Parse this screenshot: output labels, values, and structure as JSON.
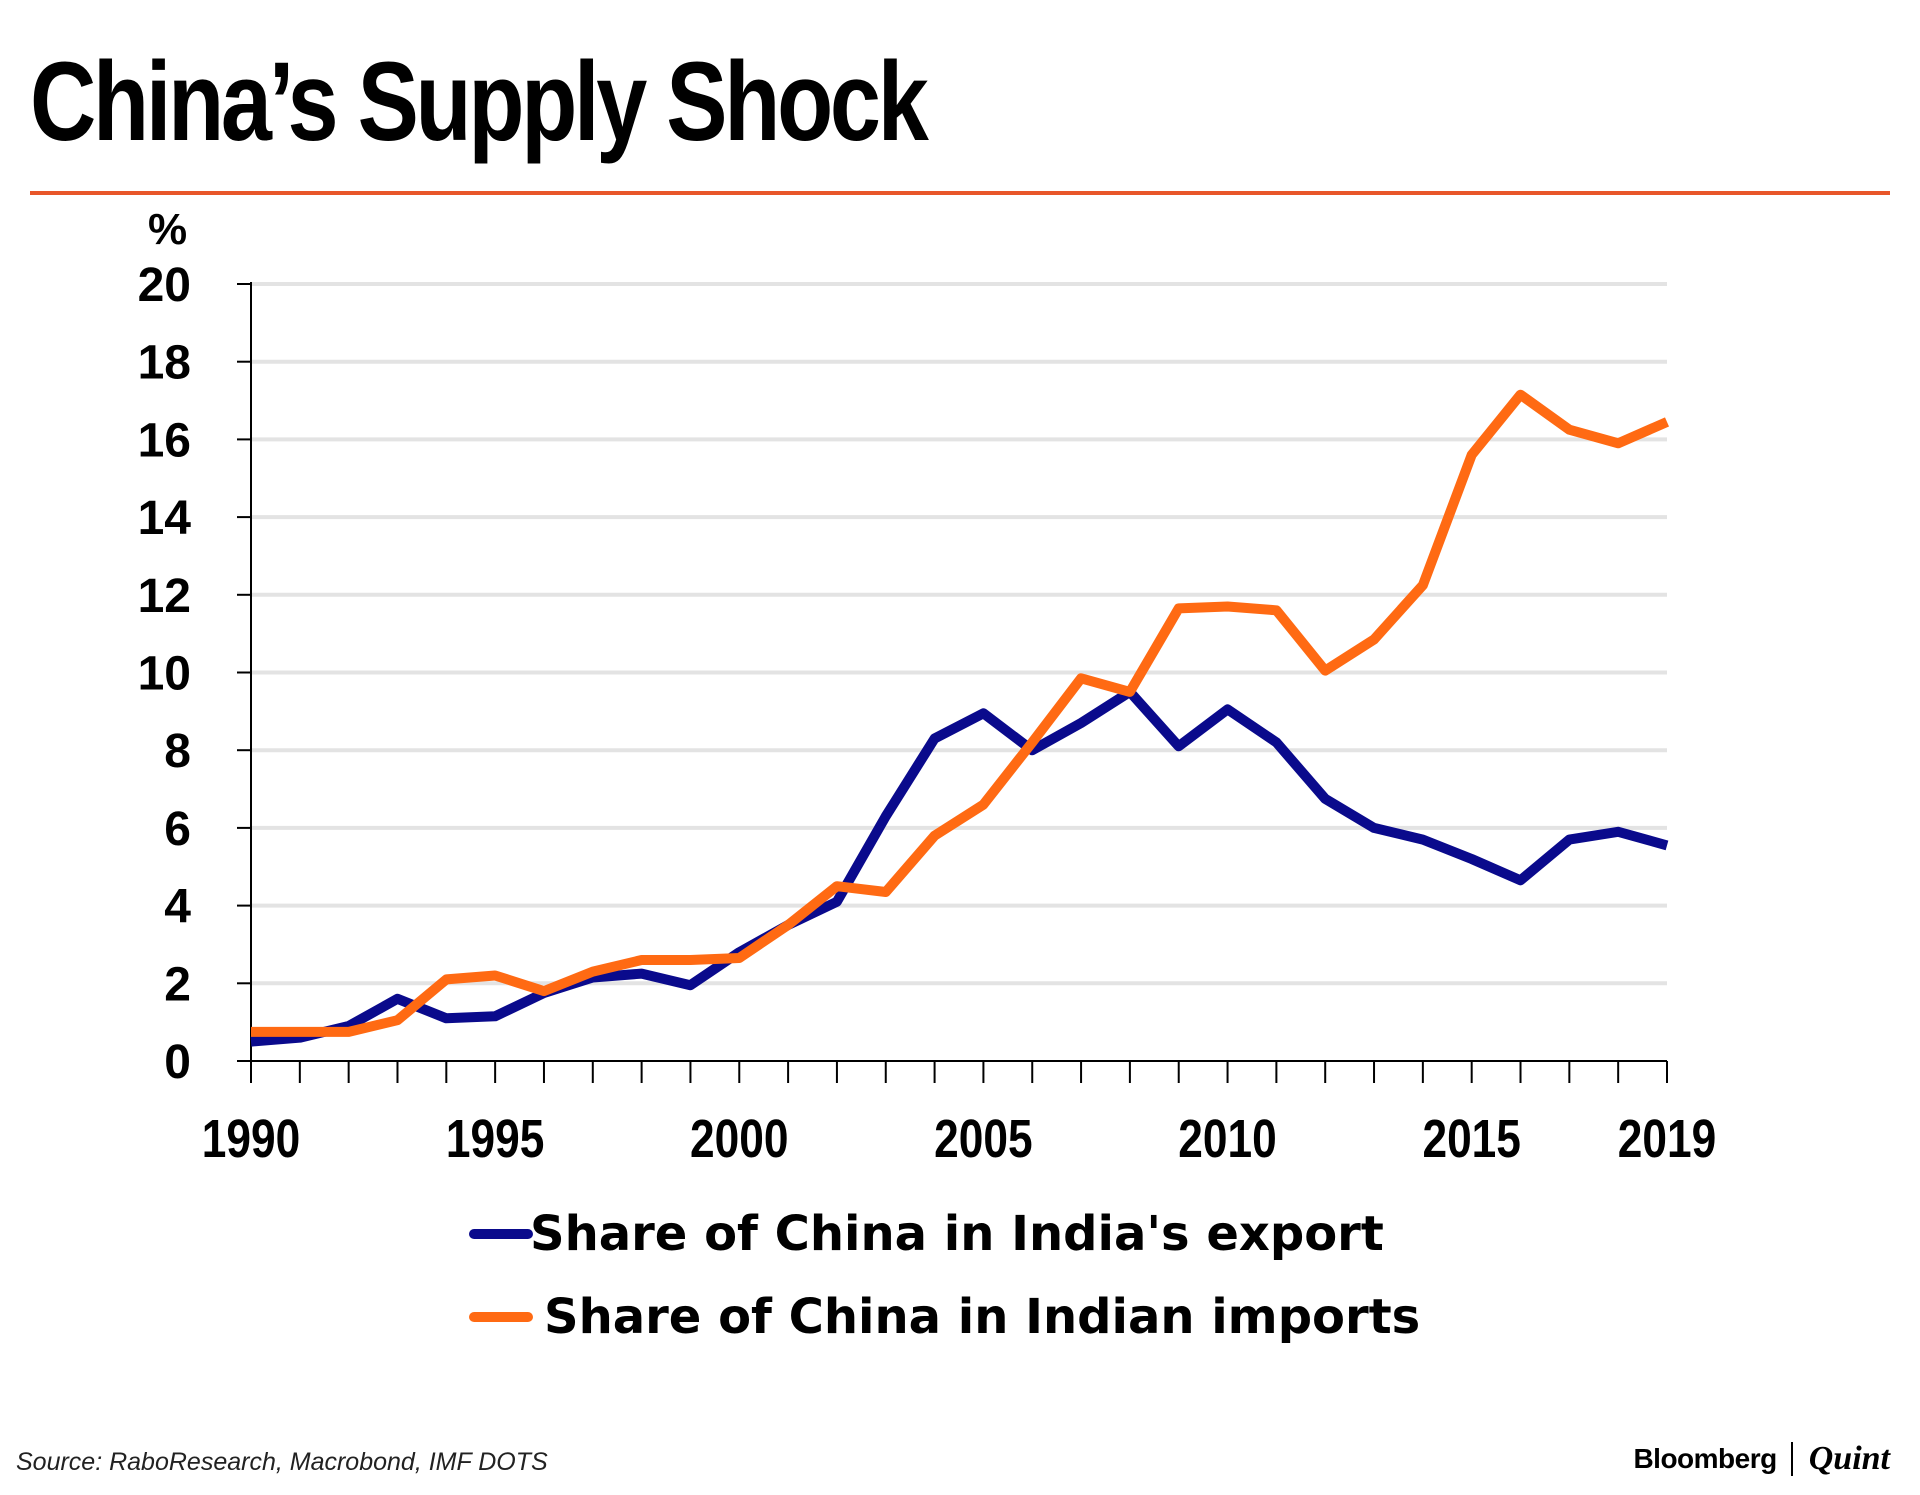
{
  "title": "China’s Supply Shock",
  "source": "Source: RaboResearch, Macrobond, IMF DOTS",
  "brand": {
    "left": "Bloomberg",
    "right": "Quint"
  },
  "colors": {
    "accent_rule": "#e8562a",
    "grid": "#e3e3e3",
    "axis": "#000000",
    "export": "#0a0a8c",
    "imports": "#ff6a13"
  },
  "chart_data": {
    "type": "line",
    "title": "China’s Supply Shock",
    "ylabel": "%",
    "xlabel": "",
    "ylim": [
      0,
      20
    ],
    "xlim": [
      1990,
      2019
    ],
    "yticks": [
      "0",
      "2",
      "4",
      "6",
      "8",
      "10",
      "12",
      "14",
      "16",
      "18",
      "20"
    ],
    "xtick_labels": [
      "1990",
      "1995",
      "2000",
      "2005",
      "2010",
      "2015",
      "2019"
    ],
    "grid": true,
    "legend_position": "bottom-center",
    "x": [
      1990,
      1991,
      1992,
      1993,
      1994,
      1995,
      1996,
      1997,
      1998,
      1999,
      2000,
      2001,
      2002,
      2003,
      2004,
      2005,
      2006,
      2007,
      2008,
      2009,
      2010,
      2011,
      2012,
      2013,
      2014,
      2015,
      2016,
      2017,
      2018,
      2019
    ],
    "series": [
      {
        "name": "Share of China in India's export",
        "color_key": "export",
        "values": [
          0.5,
          0.6,
          0.9,
          1.6,
          1.1,
          1.15,
          1.75,
          2.15,
          2.25,
          1.95,
          2.8,
          3.5,
          4.1,
          6.3,
          8.3,
          8.95,
          8.0,
          8.7,
          9.5,
          8.1,
          9.05,
          8.2,
          6.75,
          6.0,
          5.7,
          5.2,
          4.65,
          5.7,
          5.9,
          5.55
        ]
      },
      {
        "name": "Share of China in Indian imports",
        "color_key": "imports",
        "values": [
          0.75,
          0.75,
          0.75,
          1.05,
          2.1,
          2.2,
          1.8,
          2.3,
          2.6,
          2.6,
          2.65,
          3.5,
          4.5,
          4.35,
          5.8,
          6.6,
          8.2,
          9.85,
          9.5,
          11.65,
          11.7,
          11.6,
          10.05,
          10.85,
          12.25,
          15.6,
          17.15,
          16.25,
          15.9,
          16.45
        ]
      }
    ]
  }
}
